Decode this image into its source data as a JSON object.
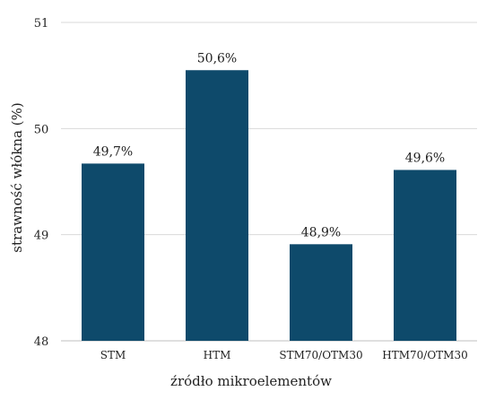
{
  "chart_data": {
    "type": "bar",
    "categories": [
      "STM",
      "HTM",
      "STM70/OTM30",
      "HTM70/OTM30"
    ],
    "values": [
      49.67,
      50.55,
      48.91,
      49.61
    ],
    "data_labels": [
      "49,7%",
      "50,6%",
      "48,9%",
      "49,6%"
    ],
    "title": "",
    "xlabel": "źródło mikroelementów",
    "ylabel": "strawność włókna (%)",
    "ylim": [
      48,
      51
    ],
    "yticks": [
      48,
      49,
      50,
      51
    ],
    "ytick_labels": [
      "48",
      "49",
      "50",
      "51"
    ],
    "grid": true,
    "colors": {
      "bar": "#0e4a6b",
      "grid": "#d9d9d9",
      "text": "#222222",
      "axis": "#bfbfbf"
    }
  }
}
